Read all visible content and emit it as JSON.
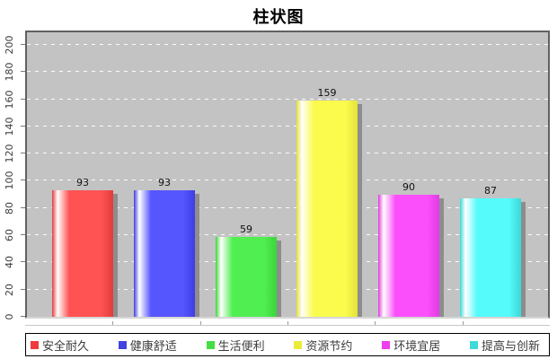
{
  "chart_data": {
    "type": "bar",
    "title": "柱状图",
    "categories": [
      "安全耐久",
      "健康舒适",
      "生活便利",
      "资源节约",
      "环境宜居",
      "提高与创新"
    ],
    "values": [
      93,
      93,
      59,
      159,
      90,
      87
    ],
    "yticks": [
      0,
      20,
      40,
      60,
      80,
      100,
      120,
      140,
      160,
      180,
      200
    ],
    "ylim": [
      0,
      209
    ],
    "xlabel": "",
    "ylabel": "",
    "grid": "dashed-white-horizontal",
    "legend_position": "bottom",
    "bar_style": "cylinder-gradient-with-shadow",
    "colors": {
      "base": [
        "#ff5353",
        "#5656ff",
        "#50ee50",
        "#fbfb4e",
        "#fb4ffb",
        "#55fbfb"
      ],
      "dark": [
        "#e23c3c",
        "#3e3ee2",
        "#3cd43c",
        "#e2e23a",
        "#e23ce2",
        "#3cd8d8"
      ],
      "swatch": [
        "#ee3b3b",
        "#4343dd",
        "#44dd44",
        "#ebeb38",
        "#ee3eee",
        "#3edada"
      ]
    },
    "plot_bg": "#c3c3c3",
    "shadow_color": "#8d8d8d"
  }
}
